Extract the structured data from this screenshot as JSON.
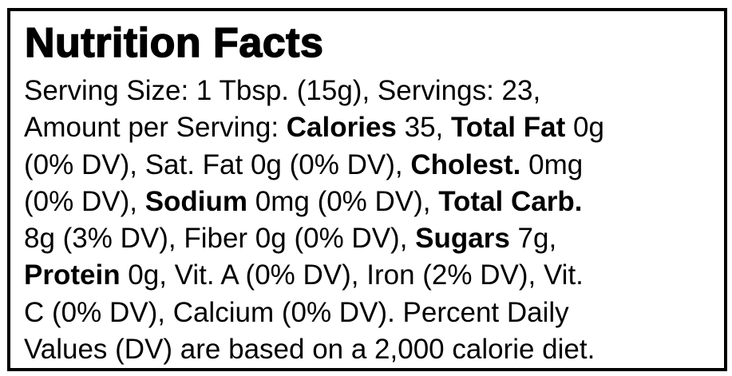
{
  "title": "Nutrition Facts",
  "body": {
    "lines": [
      [
        "Serving Size: 1 Tbsp. (15g), Servings: 23,"
      ],
      [
        "Amount per Serving: ",
        {
          "text": "Calories",
          "bold": true
        },
        " 35, ",
        {
          "text": "Total Fat",
          "bold": true
        },
        " 0g"
      ],
      [
        "(0% DV), Sat. Fat 0g (0% DV), ",
        {
          "text": "Cholest.",
          "bold": true
        },
        " 0mg"
      ],
      [
        "(0% DV), ",
        {
          "text": "Sodium",
          "bold": true
        },
        " 0mg (0% DV), ",
        {
          "text": "Total Carb.",
          "bold": true
        }
      ],
      [
        "8g (3% DV), Fiber 0g (0% DV), ",
        {
          "text": "Sugars",
          "bold": true
        },
        " 7g,"
      ],
      [
        {
          "text": "Protein",
          "bold": true
        },
        " 0g, Vit. A (0% DV), Iron (2% DV), Vit."
      ],
      [
        "C (0% DV), Calcium (0% DV). Percent Daily"
      ],
      [
        "Values (DV) are based on a 2,000 calorie diet."
      ]
    ]
  }
}
